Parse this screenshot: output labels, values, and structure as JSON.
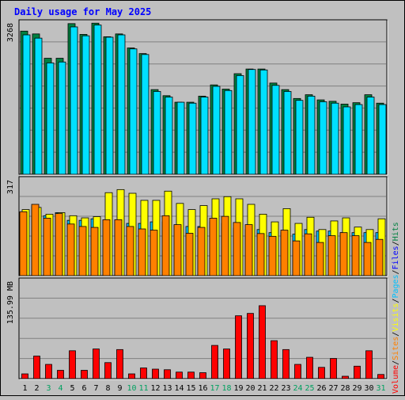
{
  "chart_data": {
    "type": "bar",
    "title": "Daily usage for May 2025",
    "categories": [
      "1",
      "2",
      "3",
      "4",
      "5",
      "6",
      "7",
      "8",
      "9",
      "10",
      "11",
      "12",
      "13",
      "14",
      "15",
      "16",
      "17",
      "18",
      "19",
      "20",
      "21",
      "22",
      "23",
      "24",
      "25",
      "26",
      "27",
      "28",
      "29",
      "30",
      "31"
    ],
    "weekend_days": [
      "3",
      "4",
      "10",
      "11",
      "17",
      "18",
      "24",
      "25",
      "31"
    ],
    "panels": [
      {
        "id": "hits-files",
        "axis_max_label": "3268",
        "ylim": [
          0,
          3268
        ],
        "series": [
          {
            "name": "Hits",
            "color": "#008040",
            "values": [
              3060,
              3000,
              2480,
              2480,
              3220,
              2990,
              3230,
              2940,
              3000,
              2700,
              2580,
              1810,
              1680,
              1540,
              1540,
              1670,
              1910,
              1820,
              2150,
              2250,
              2250,
              1950,
              1810,
              1620,
              1700,
              1590,
              1560,
              1500,
              1530,
              1700,
              1520
            ]
          },
          {
            "name": "Files",
            "color": "#00e0ff",
            "values": [
              2980,
              2910,
              2380,
              2400,
              3150,
              2960,
              3190,
              2930,
              2980,
              2680,
              2560,
              1770,
              1650,
              1540,
              1520,
              1650,
              1880,
              1790,
              2110,
              2240,
              2230,
              1900,
              1770,
              1580,
              1670,
              1550,
              1520,
              1440,
              1490,
              1650,
              1490
            ]
          }
        ]
      },
      {
        "id": "pages-visits-sites",
        "axis_max_label": "317",
        "ylim": [
          0,
          317
        ],
        "series": [
          {
            "name": "Pages",
            "color": "#00c0ff",
            "values": [
              205,
              225,
              195,
              205,
              180,
              180,
              185,
              180,
              180,
              170,
              170,
              175,
              175,
              165,
              160,
              160,
              175,
              170,
              155,
              150,
              150,
              140,
              140,
              135,
              150,
              145,
              145,
              140,
              140,
              140,
              140
            ]
          },
          {
            "name": "Visits",
            "color": "#ffff00",
            "values": [
              215,
              222,
              200,
              205,
              195,
              188,
              192,
              270,
              280,
              268,
              245,
              245,
              275,
              235,
              215,
              228,
              250,
              257,
              250,
              232,
              200,
              175,
              218,
              170,
              190,
              150,
              178,
              188,
              158,
              150,
              185
            ]
          },
          {
            "name": "Sites",
            "color": "#ff8000",
            "values": [
              208,
              232,
              187,
              202,
              168,
              160,
              157,
              182,
              182,
              160,
              152,
              148,
              195,
              166,
              138,
              157,
              187,
              193,
              173,
              166,
              137,
              128,
              148,
              113,
              136,
              108,
              130,
              140,
              130,
              108,
              118
            ]
          }
        ]
      },
      {
        "id": "volume",
        "axis_max_label": "135.99 MB",
        "ylim": [
          0,
          167
        ],
        "series": [
          {
            "name": "Volume",
            "color": "#ff0000",
            "values": [
              8,
              38,
              24,
              14,
              47,
              14,
              50,
              27,
              49,
              8,
              18,
              16,
              15,
              11,
              11,
              10,
              56,
              50,
              106,
              110,
              123,
              64,
              49,
              24,
              36,
              19,
              34,
              4,
              21,
              47,
              7
            ]
          }
        ]
      }
    ],
    "side_legend": [
      {
        "name": "Volume",
        "color": "#ff0000"
      },
      {
        "name": "Sites",
        "color": "#ff8000"
      },
      {
        "name": "Visits",
        "color": "#ffff00"
      },
      {
        "name": "Pages",
        "color": "#00c0ff"
      },
      {
        "name": "Files",
        "color": "#0000ff"
      },
      {
        "name": "Hits",
        "color": "#008040"
      }
    ],
    "legend_separator": "/",
    "colors": {
      "background": "#c0c0c0",
      "plot": "#c0c0c0",
      "gridline": "#808080",
      "title": "#0000ff",
      "day_label": "#000000",
      "weekend_label": "#00a060"
    }
  }
}
